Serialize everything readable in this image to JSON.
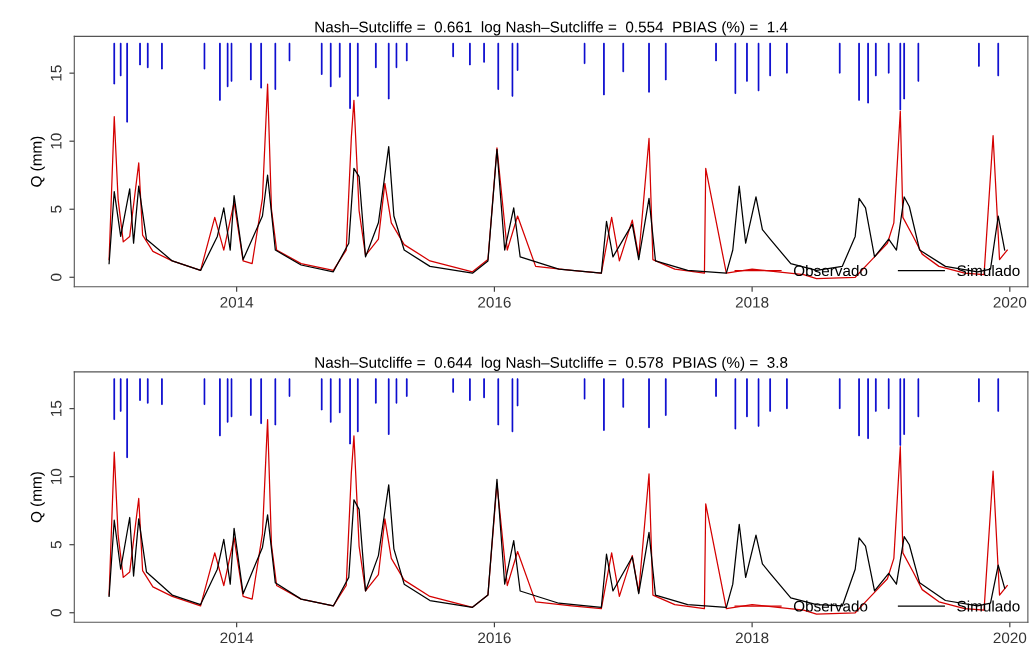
{
  "chart_data": [
    {
      "type": "line",
      "title": "Nash–Sutcliffe =  0.661  log Nash–Sutcliffe =  0.554  PBIAS (%) =  1.4",
      "ylabel": "Q (mm)",
      "xlim": [
        2012.74,
        2020.14
      ],
      "xticks": [
        2014,
        2016,
        2018,
        2020
      ],
      "ylim": [
        -0.7,
        17.7
      ],
      "yticks": [
        0,
        5,
        10,
        15
      ],
      "grid": false,
      "legend": "bottom right",
      "series": [
        {
          "type": "bar",
          "color": "#0000cc",
          "x": [
            2013.05,
            2013.1,
            2013.15,
            2013.25,
            2013.31,
            2013.42,
            2013.75,
            2013.87,
            2013.93,
            2013.96,
            2014.11,
            2014.19,
            2014.3,
            2014.41,
            2014.66,
            2014.73,
            2014.8,
            2014.88,
            2014.94,
            2015.08,
            2015.18,
            2015.24,
            2015.32,
            2015.68,
            2015.81,
            2015.92,
            2016.03,
            2016.14,
            2016.18,
            2016.7,
            2016.85,
            2017.0,
            2017.2,
            2017.33,
            2017.72,
            2017.87,
            2017.96,
            2018.05,
            2018.14,
            2018.27,
            2018.68,
            2018.83,
            2018.9,
            2018.96,
            2019.06,
            2019.15,
            2019.18,
            2019.29,
            2019.76,
            2019.91
          ],
          "base": [
            17.2,
            17.2,
            17.2,
            17.2,
            17.2,
            17.2,
            17.2,
            17.2,
            17.2,
            17.2,
            17.2,
            17.2,
            17.2,
            17.2,
            17.2,
            17.2,
            17.2,
            17.2,
            17.2,
            17.2,
            17.2,
            17.2,
            17.2,
            17.2,
            17.2,
            17.2,
            17.2,
            17.2,
            17.2,
            17.2,
            17.2,
            17.2,
            17.2,
            17.2,
            17.2,
            17.2,
            17.2,
            17.2,
            17.2,
            17.2,
            17.2,
            17.2,
            17.2,
            17.2,
            17.2,
            17.2,
            17.2,
            17.2,
            17.2,
            17.2
          ],
          "values": [
            -3.0,
            -2.4,
            -5.8,
            -1.6,
            -1.8,
            -1.9,
            -1.9,
            -4.2,
            -3.2,
            -2.8,
            -2.7,
            -3.3,
            -3.4,
            -1.3,
            -2.3,
            -3.2,
            -2.5,
            -4.8,
            -3.9,
            -1.8,
            -4.1,
            -1.8,
            -1.3,
            -1.0,
            -1.6,
            -1.4,
            -3.4,
            -3.9,
            -2.0,
            -1.5,
            -3.8,
            -2.1,
            -3.6,
            -2.7,
            -1.3,
            -3.7,
            -2.8,
            -3.5,
            -2.4,
            -2.2,
            -2.2,
            -4.2,
            -4.4,
            -2.4,
            -2.2,
            -4.9,
            -4.1,
            -2.8,
            -1.7,
            -2.4
          ]
        },
        {
          "name": "Observado",
          "color": "#d40000",
          "x": [
            2013.01,
            2013.05,
            2013.08,
            2013.12,
            2013.17,
            2013.24,
            2013.27,
            2013.35,
            2013.5,
            2013.72,
            2013.83,
            2013.9,
            2013.98,
            2014.05,
            2014.12,
            2014.2,
            2014.24,
            2014.27,
            2014.31,
            2014.5,
            2014.75,
            2014.85,
            2014.89,
            2014.91,
            2014.95,
            2015.0,
            2015.1,
            2015.15,
            2015.2,
            2015.3,
            2015.5,
            2015.83,
            2015.95,
            2016.02,
            2016.1,
            2016.18,
            2016.32,
            2016.6,
            2016.83,
            2016.91,
            2016.97,
            2017.07,
            2017.12,
            2017.2,
            2017.23,
            2017.4,
            2017.63,
            2017.64,
            2017.8,
            2018.0,
            2018.2,
            2018.4,
            2018.5,
            2018.8,
            2018.9,
            2018.95,
            2019.05,
            2019.1,
            2019.15,
            2019.17,
            2019.25,
            2019.32,
            2019.45,
            2019.65,
            2019.8,
            2019.87,
            2019.92,
            2019.98
          ],
          "values": [
            1.3,
            11.8,
            5.7,
            2.6,
            3.0,
            8.4,
            3.1,
            1.9,
            1.2,
            0.5,
            4.4,
            2.0,
            5.5,
            1.2,
            1.0,
            5.8,
            14.2,
            5.0,
            2.0,
            1.0,
            0.5,
            2.0,
            10.3,
            13.0,
            4.9,
            1.6,
            2.8,
            6.9,
            4.0,
            2.4,
            1.2,
            0.4,
            1.3,
            9.5,
            2.0,
            4.5,
            0.8,
            0.5,
            0.3,
            4.4,
            1.2,
            4.2,
            1.5,
            10.2,
            1.3,
            0.6,
            0.3,
            8.0,
            0.3,
            0.6,
            0.4,
            0.2,
            -0.1,
            0.0,
            1.0,
            1.5,
            2.5,
            4.0,
            12.2,
            4.4,
            3.0,
            1.7,
            0.8,
            0.3,
            0.2,
            10.4,
            1.3,
            2.0
          ]
        },
        {
          "name": "Simulado",
          "color": "#000000",
          "x": [
            2013.01,
            2013.05,
            2013.1,
            2013.17,
            2013.2,
            2013.24,
            2013.3,
            2013.5,
            2013.72,
            2013.85,
            2013.9,
            2013.95,
            2013.98,
            2014.05,
            2014.2,
            2014.24,
            2014.3,
            2014.5,
            2014.75,
            2014.87,
            2014.91,
            2014.95,
            2015.0,
            2015.1,
            2015.18,
            2015.22,
            2015.3,
            2015.5,
            2015.83,
            2015.95,
            2016.02,
            2016.08,
            2016.15,
            2016.2,
            2016.5,
            2016.83,
            2016.87,
            2016.92,
            2017.07,
            2017.12,
            2017.2,
            2017.25,
            2017.5,
            2017.8,
            2017.85,
            2017.9,
            2017.95,
            2018.03,
            2018.08,
            2018.14,
            2018.3,
            2018.5,
            2018.7,
            2018.8,
            2018.83,
            2018.88,
            2018.95,
            2019.06,
            2019.12,
            2019.18,
            2019.22,
            2019.3,
            2019.5,
            2019.75,
            2019.85,
            2019.91,
            2019.96
          ],
          "values": [
            1.0,
            6.3,
            3.0,
            6.5,
            2.5,
            6.7,
            2.8,
            1.2,
            0.5,
            3.0,
            5.1,
            2.0,
            6.0,
            1.3,
            4.5,
            7.5,
            2.0,
            0.9,
            0.4,
            2.5,
            8.0,
            7.4,
            1.5,
            4.0,
            9.6,
            4.5,
            2.0,
            0.8,
            0.3,
            1.2,
            9.4,
            2.0,
            5.1,
            1.5,
            0.6,
            0.3,
            4.1,
            1.5,
            3.9,
            1.3,
            5.8,
            1.2,
            0.5,
            0.3,
            2.0,
            6.7,
            2.5,
            5.9,
            3.5,
            2.8,
            1.0,
            0.5,
            0.8,
            3.0,
            5.8,
            5.1,
            1.5,
            2.8,
            2.0,
            5.9,
            5.2,
            2.0,
            0.8,
            0.4,
            0.6,
            4.5,
            2.0
          ]
        }
      ]
    },
    {
      "type": "line",
      "title": "Nash–Sutcliffe =  0.644  log Nash–Sutcliffe =  0.578  PBIAS (%) =  3.8",
      "ylabel": "Q (mm)",
      "xlim": [
        2012.74,
        2020.14
      ],
      "xticks": [
        2014,
        2016,
        2018,
        2020
      ],
      "ylim": [
        -0.7,
        17.7
      ],
      "yticks": [
        0,
        5,
        10,
        15
      ],
      "grid": false,
      "legend": "bottom right",
      "series": [
        {
          "type": "bar",
          "color": "#0000cc",
          "x": [
            2013.05,
            2013.1,
            2013.15,
            2013.25,
            2013.31,
            2013.42,
            2013.75,
            2013.87,
            2013.93,
            2013.96,
            2014.11,
            2014.19,
            2014.3,
            2014.41,
            2014.66,
            2014.73,
            2014.8,
            2014.88,
            2014.94,
            2015.08,
            2015.18,
            2015.24,
            2015.32,
            2015.68,
            2015.81,
            2015.92,
            2016.03,
            2016.14,
            2016.18,
            2016.7,
            2016.85,
            2017.0,
            2017.2,
            2017.33,
            2017.72,
            2017.87,
            2017.96,
            2018.05,
            2018.14,
            2018.27,
            2018.68,
            2018.83,
            2018.9,
            2018.96,
            2019.06,
            2019.15,
            2019.18,
            2019.29,
            2019.76,
            2019.91
          ],
          "base": [
            17.2,
            17.2,
            17.2,
            17.2,
            17.2,
            17.2,
            17.2,
            17.2,
            17.2,
            17.2,
            17.2,
            17.2,
            17.2,
            17.2,
            17.2,
            17.2,
            17.2,
            17.2,
            17.2,
            17.2,
            17.2,
            17.2,
            17.2,
            17.2,
            17.2,
            17.2,
            17.2,
            17.2,
            17.2,
            17.2,
            17.2,
            17.2,
            17.2,
            17.2,
            17.2,
            17.2,
            17.2,
            17.2,
            17.2,
            17.2,
            17.2,
            17.2,
            17.2,
            17.2,
            17.2,
            17.2,
            17.2,
            17.2,
            17.2,
            17.2
          ],
          "values": [
            -3.0,
            -2.4,
            -5.8,
            -1.6,
            -1.8,
            -1.9,
            -1.9,
            -4.2,
            -3.2,
            -2.8,
            -2.7,
            -3.3,
            -3.4,
            -1.3,
            -2.3,
            -3.2,
            -2.5,
            -4.8,
            -3.9,
            -1.8,
            -4.1,
            -1.8,
            -1.3,
            -1.0,
            -1.6,
            -1.4,
            -3.4,
            -3.9,
            -2.0,
            -1.5,
            -3.8,
            -2.1,
            -3.6,
            -2.7,
            -1.3,
            -3.7,
            -2.8,
            -3.5,
            -2.4,
            -2.2,
            -2.2,
            -4.2,
            -4.4,
            -2.4,
            -2.2,
            -4.9,
            -4.1,
            -2.8,
            -1.7,
            -2.4
          ]
        },
        {
          "name": "Observado",
          "color": "#d40000",
          "x": [
            2013.01,
            2013.05,
            2013.08,
            2013.12,
            2013.17,
            2013.24,
            2013.27,
            2013.35,
            2013.5,
            2013.72,
            2013.83,
            2013.9,
            2013.98,
            2014.05,
            2014.12,
            2014.2,
            2014.24,
            2014.27,
            2014.31,
            2014.5,
            2014.75,
            2014.85,
            2014.89,
            2014.91,
            2014.95,
            2015.0,
            2015.1,
            2015.15,
            2015.2,
            2015.3,
            2015.5,
            2015.83,
            2015.95,
            2016.02,
            2016.1,
            2016.18,
            2016.32,
            2016.6,
            2016.83,
            2016.91,
            2016.97,
            2017.07,
            2017.12,
            2017.2,
            2017.23,
            2017.4,
            2017.63,
            2017.64,
            2017.8,
            2018.0,
            2018.2,
            2018.4,
            2018.5,
            2018.8,
            2018.9,
            2018.95,
            2019.05,
            2019.1,
            2019.15,
            2019.17,
            2019.25,
            2019.32,
            2019.45,
            2019.65,
            2019.8,
            2019.87,
            2019.92,
            2019.98
          ],
          "values": [
            1.3,
            11.8,
            5.7,
            2.6,
            3.0,
            8.4,
            3.1,
            1.9,
            1.2,
            0.5,
            4.4,
            2.0,
            5.5,
            1.2,
            1.0,
            5.8,
            14.2,
            5.0,
            2.0,
            1.0,
            0.5,
            2.0,
            10.3,
            13.0,
            4.9,
            1.6,
            2.8,
            6.9,
            4.0,
            2.4,
            1.2,
            0.4,
            1.3,
            9.5,
            2.0,
            4.5,
            0.8,
            0.5,
            0.3,
            4.4,
            1.2,
            4.2,
            1.5,
            10.2,
            1.3,
            0.6,
            0.3,
            8.0,
            0.3,
            0.6,
            0.4,
            0.2,
            -0.1,
            0.0,
            1.0,
            1.5,
            2.5,
            4.0,
            12.2,
            4.4,
            3.0,
            1.7,
            0.8,
            0.3,
            0.2,
            10.4,
            1.3,
            2.0
          ]
        },
        {
          "name": "Simulado",
          "color": "#000000",
          "x": [
            2013.01,
            2013.05,
            2013.1,
            2013.17,
            2013.2,
            2013.24,
            2013.3,
            2013.5,
            2013.72,
            2013.85,
            2013.9,
            2013.95,
            2013.98,
            2014.05,
            2014.2,
            2014.24,
            2014.3,
            2014.5,
            2014.75,
            2014.87,
            2014.91,
            2014.95,
            2015.0,
            2015.1,
            2015.18,
            2015.22,
            2015.3,
            2015.5,
            2015.83,
            2015.95,
            2016.02,
            2016.08,
            2016.15,
            2016.2,
            2016.5,
            2016.83,
            2016.87,
            2016.92,
            2017.07,
            2017.12,
            2017.2,
            2017.25,
            2017.5,
            2017.8,
            2017.85,
            2017.9,
            2017.95,
            2018.03,
            2018.08,
            2018.14,
            2018.3,
            2018.5,
            2018.7,
            2018.8,
            2018.83,
            2018.88,
            2018.95,
            2019.06,
            2019.12,
            2019.18,
            2019.22,
            2019.3,
            2019.5,
            2019.75,
            2019.85,
            2019.91,
            2019.96
          ],
          "values": [
            1.2,
            6.8,
            3.2,
            7.0,
            2.7,
            6.9,
            3.0,
            1.3,
            0.6,
            3.2,
            5.4,
            2.1,
            6.2,
            1.4,
            4.8,
            7.2,
            2.2,
            1.0,
            0.5,
            2.6,
            8.3,
            7.6,
            1.6,
            4.2,
            9.4,
            4.7,
            2.1,
            0.9,
            0.4,
            1.3,
            9.8,
            2.1,
            5.3,
            1.6,
            0.7,
            0.4,
            4.3,
            1.6,
            4.1,
            1.4,
            5.9,
            1.3,
            0.6,
            0.4,
            2.1,
            6.5,
            2.6,
            5.7,
            3.6,
            2.9,
            1.1,
            0.6,
            0.5,
            3.2,
            5.5,
            4.9,
            1.6,
            2.9,
            2.1,
            5.6,
            5.0,
            2.2,
            0.9,
            0.5,
            0.7,
            3.5,
            1.8
          ]
        }
      ]
    }
  ]
}
